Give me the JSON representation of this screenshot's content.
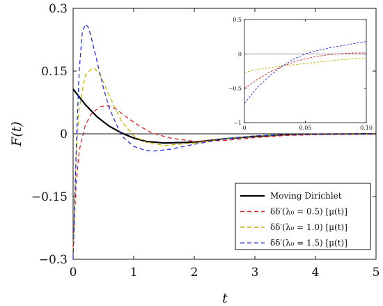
{
  "chart_data": [
    {
      "type": "line",
      "title": "",
      "xlabel": "t",
      "ylabel": "F(t)",
      "xlim": [
        0,
        5
      ],
      "ylim": [
        -0.3,
        0.3
      ],
      "xticks": [
        "0",
        "1",
        "2",
        "3",
        "4",
        "5"
      ],
      "yticks": [
        "0.3",
        "0.15",
        "0",
        "−0.15",
        "−0.3"
      ],
      "ytick_values": [
        0.3,
        0.15,
        0,
        -0.15,
        -0.3
      ],
      "legend_position": "bottom-right",
      "series": [
        {
          "name": "Moving Dirichlet",
          "color": "#000000",
          "style": "solid",
          "x": [
            0,
            0.2,
            0.4,
            0.6,
            0.8,
            1.0,
            1.2,
            1.5,
            2.0,
            2.5,
            3.0,
            3.5,
            4.0,
            5.0
          ],
          "y": [
            0.107,
            0.07,
            0.04,
            0.018,
            0.002,
            -0.01,
            -0.018,
            -0.022,
            -0.02,
            -0.012,
            -0.006,
            -0.002,
            -0.001,
            0
          ]
        },
        {
          "name": "δδ′(λ₀ = 0.5) [μ(t)]",
          "color": "#e02020",
          "style": "dashed",
          "x": [
            0,
            0.05,
            0.1,
            0.2,
            0.3,
            0.45,
            0.55,
            0.7,
            0.9,
            1.1,
            1.3,
            1.6,
            2.0,
            2.5,
            3.0,
            3.5,
            4.0,
            5.0
          ],
          "y": [
            -0.27,
            -0.12,
            -0.04,
            0.02,
            0.048,
            0.065,
            0.068,
            0.06,
            0.038,
            0.018,
            0.002,
            -0.01,
            -0.018,
            -0.016,
            -0.009,
            -0.004,
            -0.002,
            0
          ]
        },
        {
          "name": "δδ′(λ₀ = 1.0) [μ(t)]",
          "color": "#c8b400",
          "style": "dashed",
          "x": [
            0,
            0.05,
            0.1,
            0.2,
            0.3,
            0.35,
            0.45,
            0.6,
            0.8,
            1.0,
            1.2,
            1.5,
            2.0,
            2.5,
            3.0,
            3.5,
            4.0,
            5.0
          ],
          "y": [
            -0.28,
            -0.05,
            0.06,
            0.14,
            0.155,
            0.157,
            0.14,
            0.09,
            0.03,
            -0.005,
            -0.02,
            -0.028,
            -0.022,
            -0.012,
            -0.005,
            -0.002,
            -0.001,
            0
          ]
        },
        {
          "name": "δδ′(λ₀ = 1.5) [μ(t)]",
          "color": "#2030e0",
          "style": "dashed",
          "x": [
            0,
            0.03,
            0.06,
            0.1,
            0.15,
            0.2,
            0.25,
            0.3,
            0.4,
            0.5,
            0.6,
            0.8,
            1.0,
            1.2,
            1.35,
            1.6,
            2.0,
            2.5,
            3.0,
            3.5,
            4.0,
            5.0
          ],
          "y": [
            -0.3,
            -0.15,
            0.0,
            0.15,
            0.24,
            0.262,
            0.255,
            0.23,
            0.17,
            0.11,
            0.06,
            -0.005,
            -0.03,
            -0.04,
            -0.041,
            -0.037,
            -0.025,
            -0.012,
            -0.005,
            -0.002,
            -0.001,
            0
          ]
        }
      ]
    },
    {
      "type": "line",
      "title": "",
      "xlabel": "",
      "ylabel": "",
      "xlim": [
        0,
        0.1
      ],
      "ylim": [
        -1.0,
        0.5
      ],
      "xticks": [
        "0",
        "0.05",
        "0.10"
      ],
      "xtick_values": [
        0,
        0.05,
        0.1
      ],
      "yticks": [
        "0.5",
        "0",
        "−0.5",
        "−1"
      ],
      "ytick_values": [
        0.5,
        0,
        -0.5,
        -1
      ],
      "series": [
        {
          "name": "δδ′(λ₀ = 0.5) [μ(t)]",
          "color": "#e02020",
          "style": "dashed",
          "x": [
            0,
            0.01,
            0.02,
            0.03,
            0.04,
            0.05,
            0.06,
            0.07,
            0.08,
            0.09,
            0.1
          ],
          "y": [
            -0.5,
            -0.38,
            -0.27,
            -0.19,
            -0.12,
            -0.07,
            -0.035,
            -0.01,
            0.005,
            0.012,
            0.015
          ]
        },
        {
          "name": "δδ′(λ₀ = 1.0) [μ(t)]",
          "color": "#c8b400",
          "style": "dashed",
          "x": [
            0,
            0.01,
            0.02,
            0.03,
            0.04,
            0.05,
            0.06,
            0.07,
            0.08,
            0.09,
            0.1
          ],
          "y": [
            -0.27,
            -0.23,
            -0.2,
            -0.18,
            -0.16,
            -0.14,
            -0.12,
            -0.1,
            -0.085,
            -0.07,
            -0.06
          ]
        },
        {
          "name": "δδ′(λ₀ = 1.5) [μ(t)]",
          "color": "#2030e0",
          "style": "dashed",
          "x": [
            0,
            0.01,
            0.02,
            0.03,
            0.04,
            0.05,
            0.06,
            0.07,
            0.08,
            0.09,
            0.1
          ],
          "y": [
            -0.72,
            -0.5,
            -0.33,
            -0.19,
            -0.08,
            0.0,
            0.05,
            0.09,
            0.12,
            0.15,
            0.18
          ]
        }
      ]
    }
  ]
}
